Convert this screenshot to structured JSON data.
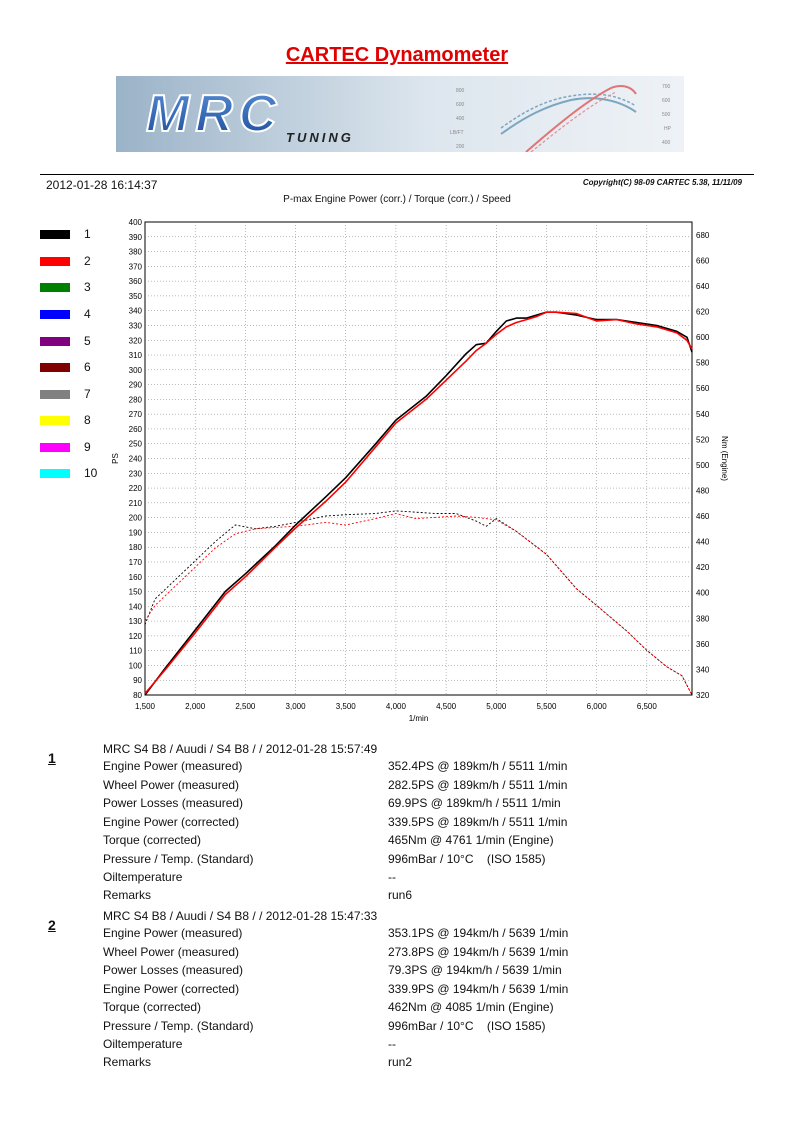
{
  "document": {
    "title": "CARTEC Dynamometer",
    "timestamp": "2012-01-28 16:14:37",
    "copyright": "Copyright(C) 98-09 CARTEC 5.38, 11/11/09"
  },
  "banner": {
    "logo_text": "MRC",
    "logo_subtext": "TUNING",
    "mini_left_ticks": [
      "800",
      "600",
      "400",
      "LB/FT",
      "200"
    ],
    "mini_right_ticks": [
      "700",
      "600",
      "500",
      "HP",
      "400"
    ]
  },
  "legend": {
    "items": [
      {
        "label": "1",
        "color": "#000000"
      },
      {
        "label": "2",
        "color": "#ff0000"
      },
      {
        "label": "3",
        "color": "#008000"
      },
      {
        "label": "4",
        "color": "#0000ff"
      },
      {
        "label": "5",
        "color": "#800080"
      },
      {
        "label": "6",
        "color": "#800000"
      },
      {
        "label": "7",
        "color": "#808080"
      },
      {
        "label": "8",
        "color": "#ffff00"
      },
      {
        "label": "9",
        "color": "#ff00ff"
      },
      {
        "label": "10",
        "color": "#00ffff"
      }
    ]
  },
  "chart_data": {
    "type": "line",
    "title": "P-max Engine Power (corr.) / Torque (corr.) / Speed",
    "xlabel": "1/min",
    "ylabel": "PS",
    "y2label": "Nm (Engine)",
    "xlim": [
      1500,
      6950
    ],
    "ylim": [
      80,
      400
    ],
    "y2lim": [
      320,
      690
    ],
    "x_ticks": [
      "1,500",
      "2,000",
      "2,500",
      "3,000",
      "3,500",
      "4,000",
      "4,500",
      "5,000",
      "5,500",
      "6,000",
      "6,500"
    ],
    "x_tick_values": [
      1500,
      2000,
      2500,
      3000,
      3500,
      4000,
      4500,
      5000,
      5500,
      6000,
      6500
    ],
    "y_ticks": [
      80,
      90,
      100,
      110,
      120,
      130,
      140,
      150,
      160,
      170,
      180,
      190,
      200,
      210,
      220,
      230,
      240,
      250,
      260,
      270,
      280,
      290,
      300,
      310,
      320,
      330,
      340,
      350,
      360,
      370,
      380,
      390,
      400
    ],
    "y2_ticks": [
      320,
      340,
      360,
      380,
      400,
      420,
      440,
      460,
      480,
      500,
      520,
      540,
      560,
      580,
      600,
      620,
      640,
      660,
      680
    ],
    "grid": true,
    "series": [
      {
        "name": "1",
        "measure": "power",
        "color": "#000000",
        "width": 1.6,
        "dash": "",
        "x": [
          1500,
          1700,
          2000,
          2300,
          2500,
          2800,
          3000,
          3300,
          3500,
          3800,
          4000,
          4300,
          4500,
          4700,
          4800,
          4900,
          5000,
          5100,
          5200,
          5300,
          5400,
          5500,
          5600,
          5800,
          6000,
          6200,
          6400,
          6600,
          6800,
          6900,
          6950
        ],
        "y": [
          80,
          98,
          124,
          150,
          162,
          181,
          195,
          214,
          227,
          250,
          266,
          282,
          296,
          311,
          317,
          318,
          326,
          333,
          335,
          335,
          337,
          339,
          339,
          337,
          334,
          334,
          332,
          330,
          326,
          322,
          312
        ]
      },
      {
        "name": "2",
        "measure": "power",
        "color": "#ff0000",
        "width": 1.6,
        "dash": "",
        "x": [
          1500,
          1700,
          2000,
          2300,
          2500,
          2800,
          3000,
          3300,
          3500,
          3800,
          4000,
          4300,
          4500,
          4700,
          4800,
          4900,
          5000,
          5100,
          5200,
          5300,
          5400,
          5500,
          5600,
          5800,
          6000,
          6200,
          6400,
          6600,
          6800,
          6900,
          6950
        ],
        "y": [
          81,
          97,
          122,
          148,
          160,
          180,
          193,
          211,
          224,
          248,
          264,
          280,
          293,
          306,
          313,
          318,
          324,
          329,
          332,
          334,
          336,
          339,
          339,
          338,
          333,
          334,
          331,
          329,
          325,
          320,
          314
        ]
      },
      {
        "name": "1",
        "measure": "torque",
        "color": "#000000",
        "width": 0.9,
        "dash": "2,2",
        "x": [
          1500,
          1600,
          1800,
          2000,
          2200,
          2400,
          2600,
          2800,
          3000,
          3300,
          3500,
          3800,
          4000,
          4200,
          4400,
          4600,
          4800,
          4900,
          5000,
          5200,
          5500,
          5800,
          6000,
          6300,
          6500,
          6700,
          6850,
          6950
        ],
        "y": [
          375,
          395,
          410,
          425,
          440,
          453,
          450,
          452,
          455,
          460,
          461,
          462,
          464,
          463,
          462,
          462,
          456,
          452,
          458,
          448,
          430,
          403,
          390,
          370,
          355,
          342,
          335,
          320
        ]
      },
      {
        "name": "2",
        "measure": "torque",
        "color": "#ff0000",
        "width": 0.9,
        "dash": "2,2",
        "x": [
          1500,
          1600,
          1800,
          2000,
          2200,
          2400,
          2600,
          2800,
          3000,
          3300,
          3500,
          3800,
          4000,
          4200,
          4400,
          4600,
          4800,
          4900,
          5000,
          5200,
          5500,
          5800,
          6000,
          6300,
          6500,
          6700,
          6850,
          6950
        ],
        "y": [
          378,
          390,
          405,
          420,
          435,
          446,
          450,
          451,
          452,
          455,
          453,
          458,
          462,
          458,
          459,
          460,
          459,
          458,
          457,
          448,
          430,
          403,
          390,
          370,
          355,
          342,
          335,
          320
        ]
      }
    ]
  },
  "runs": [
    {
      "number": "1",
      "header": "MRC S4 B8 / Auudi / S4 B8 /  / 2012-01-28 15:57:49",
      "rows": [
        {
          "label": "Engine Power (measured)",
          "value": "352.4PS @ 189km/h / 5511 1/min"
        },
        {
          "label": "Wheel Power (measured)",
          "value": "282.5PS @ 189km/h / 5511 1/min"
        },
        {
          "label": "Power Losses (measured)",
          "value": "69.9PS @ 189km/h / 5511 1/min"
        },
        {
          "label": "Engine Power (corrected)",
          "value": "339.5PS @ 189km/h / 5511 1/min"
        },
        {
          "label": "Torque (corrected)",
          "value": "465Nm @ 4761 1/min (Engine)"
        },
        {
          "label": "Pressure / Temp. (Standard)",
          "value": "996mBar / 10°C    (ISO 1585)"
        },
        {
          "label": "Oiltemperature",
          "value": "--"
        },
        {
          "label": "Remarks",
          "value": "run6"
        }
      ]
    },
    {
      "number": "2",
      "header": "MRC S4 B8 / Auudi / S4 B8 /  / 2012-01-28 15:47:33",
      "rows": [
        {
          "label": "Engine Power (measured)",
          "value": "353.1PS @ 194km/h / 5639 1/min"
        },
        {
          "label": "Wheel Power (measured)",
          "value": "273.8PS @ 194km/h / 5639 1/min"
        },
        {
          "label": "Power Losses (measured)",
          "value": "79.3PS @ 194km/h / 5639 1/min"
        },
        {
          "label": "Engine Power (corrected)",
          "value": "339.9PS @ 194km/h / 5639 1/min"
        },
        {
          "label": "Torque (corrected)",
          "value": "462Nm @ 4085 1/min (Engine)"
        },
        {
          "label": "Pressure / Temp. (Standard)",
          "value": "996mBar / 10°C    (ISO 1585)"
        },
        {
          "label": "Oiltemperature",
          "value": "--"
        },
        {
          "label": "Remarks",
          "value": "run2"
        }
      ]
    }
  ]
}
